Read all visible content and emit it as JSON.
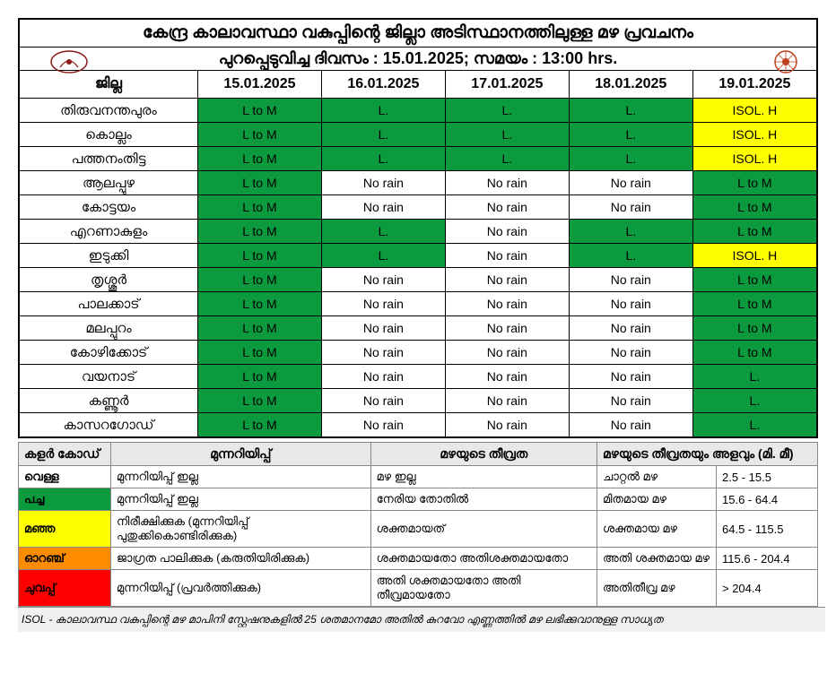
{
  "title": "കേന്ദ്ര കാലാവസ്ഥാ വകുപ്പിന്റെ ജില്ലാ അടിസ്ഥാനത്തിലുള്ള മഴ പ്രവചനം",
  "subtitle": "പുറപ്പെടുവിച്ച ദിവസം : 15.01.2025; സമയം : 13:00 hrs.",
  "col_district": "ജില്ല",
  "dates": [
    "15.01.2025",
    "16.01.2025",
    "17.01.2025",
    "18.01.2025",
    "19.01.2025"
  ],
  "colors": {
    "white": "#ffffff",
    "green": "#0b9b3e",
    "yellow": "#ffff00",
    "orange": "#ff8c00",
    "red": "#ff0000"
  },
  "rows": [
    {
      "district": "തിരുവനന്തപുരം",
      "cells": [
        {
          "t": "L to M",
          "c": "green"
        },
        {
          "t": "L.",
          "c": "green"
        },
        {
          "t": "L.",
          "c": "green"
        },
        {
          "t": "L.",
          "c": "green"
        },
        {
          "t": "ISOL. H",
          "c": "yellow"
        }
      ]
    },
    {
      "district": "കൊല്ലം",
      "cells": [
        {
          "t": "L to M",
          "c": "green"
        },
        {
          "t": "L.",
          "c": "green"
        },
        {
          "t": "L.",
          "c": "green"
        },
        {
          "t": "L.",
          "c": "green"
        },
        {
          "t": "ISOL. H",
          "c": "yellow"
        }
      ]
    },
    {
      "district": "പത്തനംതിട്ട",
      "cells": [
        {
          "t": "L to M",
          "c": "green"
        },
        {
          "t": "L.",
          "c": "green"
        },
        {
          "t": "L.",
          "c": "green"
        },
        {
          "t": "L.",
          "c": "green"
        },
        {
          "t": "ISOL. H",
          "c": "yellow"
        }
      ]
    },
    {
      "district": "ആലപ്പുഴ",
      "cells": [
        {
          "t": "L to M",
          "c": "green"
        },
        {
          "t": "No rain",
          "c": "white"
        },
        {
          "t": "No rain",
          "c": "white"
        },
        {
          "t": "No rain",
          "c": "white"
        },
        {
          "t": "L to M",
          "c": "green"
        }
      ]
    },
    {
      "district": "കോട്ടയം",
      "cells": [
        {
          "t": "L to M",
          "c": "green"
        },
        {
          "t": "No rain",
          "c": "white"
        },
        {
          "t": "No rain",
          "c": "white"
        },
        {
          "t": "No rain",
          "c": "white"
        },
        {
          "t": "L to M",
          "c": "green"
        }
      ]
    },
    {
      "district": "എറണാകുളം",
      "cells": [
        {
          "t": "L to M",
          "c": "green"
        },
        {
          "t": "L.",
          "c": "green"
        },
        {
          "t": "No rain",
          "c": "white"
        },
        {
          "t": "L.",
          "c": "green"
        },
        {
          "t": "L to M",
          "c": "green"
        }
      ]
    },
    {
      "district": "ഇടുക്കി",
      "cells": [
        {
          "t": "L to M",
          "c": "green"
        },
        {
          "t": "L.",
          "c": "green"
        },
        {
          "t": "No rain",
          "c": "white"
        },
        {
          "t": "L.",
          "c": "green"
        },
        {
          "t": "ISOL. H",
          "c": "yellow"
        }
      ]
    },
    {
      "district": "തൃശ്ശൂർ",
      "cells": [
        {
          "t": "L to M",
          "c": "green"
        },
        {
          "t": "No rain",
          "c": "white"
        },
        {
          "t": "No rain",
          "c": "white"
        },
        {
          "t": "No rain",
          "c": "white"
        },
        {
          "t": "L to M",
          "c": "green"
        }
      ]
    },
    {
      "district": "പാലക്കാട്",
      "cells": [
        {
          "t": "L to M",
          "c": "green"
        },
        {
          "t": "No rain",
          "c": "white"
        },
        {
          "t": "No rain",
          "c": "white"
        },
        {
          "t": "No rain",
          "c": "white"
        },
        {
          "t": "L to M",
          "c": "green"
        }
      ]
    },
    {
      "district": "മലപ്പുറം",
      "cells": [
        {
          "t": "L to M",
          "c": "green"
        },
        {
          "t": "No rain",
          "c": "white"
        },
        {
          "t": "No rain",
          "c": "white"
        },
        {
          "t": "No rain",
          "c": "white"
        },
        {
          "t": "L to M",
          "c": "green"
        }
      ]
    },
    {
      "district": "കോഴിക്കോട്",
      "cells": [
        {
          "t": "L to M",
          "c": "green"
        },
        {
          "t": "No rain",
          "c": "white"
        },
        {
          "t": "No rain",
          "c": "white"
        },
        {
          "t": "No rain",
          "c": "white"
        },
        {
          "t": "L to M",
          "c": "green"
        }
      ]
    },
    {
      "district": "വയനാട്",
      "cells": [
        {
          "t": "L to M",
          "c": "green"
        },
        {
          "t": "No rain",
          "c": "white"
        },
        {
          "t": "No rain",
          "c": "white"
        },
        {
          "t": "No rain",
          "c": "white"
        },
        {
          "t": "L.",
          "c": "green"
        }
      ]
    },
    {
      "district": "കണ്ണൂർ",
      "cells": [
        {
          "t": "L to M",
          "c": "green"
        },
        {
          "t": "No rain",
          "c": "white"
        },
        {
          "t": "No rain",
          "c": "white"
        },
        {
          "t": "No rain",
          "c": "white"
        },
        {
          "t": "L.",
          "c": "green"
        }
      ]
    },
    {
      "district": "കാസറഗോഡ്",
      "cells": [
        {
          "t": "L to M",
          "c": "green"
        },
        {
          "t": "No rain",
          "c": "white"
        },
        {
          "t": "No rain",
          "c": "white"
        },
        {
          "t": "No rain",
          "c": "white"
        },
        {
          "t": "L.",
          "c": "green"
        }
      ]
    }
  ],
  "legend": {
    "h_code": "കളർ കോഡ്",
    "h_warning": "മുന്നറിയിപ്പ്",
    "h_intensity": "മഴയുടെ തീവ്രത",
    "h_amount": "മഴയുടെ തീവ്രതയും അളവും (മി. മീ)",
    "rows": [
      {
        "code": "വെള്ള",
        "bg": "white",
        "warn": "മുന്നറിയിപ്പ് ഇല്ല",
        "intensity": "മഴ ഇല്ല",
        "type": "ചാറ്റൽ മഴ",
        "range": "2.5 - 15.5"
      },
      {
        "code": "പച്ച",
        "bg": "green",
        "warn": "മുന്നറിയിപ്പ് ഇല്ല",
        "intensity": "നേരിയ തോതിൽ",
        "type": "മിതമായ മഴ",
        "range": "15.6 - 64.4"
      },
      {
        "code": "മഞ്ഞ",
        "bg": "yellow",
        "warn": "നിരീക്ഷിക്കുക (മുന്നറിയിപ്പ് പുതുക്കികൊണ്ടിരിക്കുക)",
        "intensity": "ശക്തമായത്",
        "type": "ശക്തമായ മഴ",
        "range": "64.5 - 115.5"
      },
      {
        "code": "ഓറഞ്ച്",
        "bg": "orange",
        "warn": "ജാഗ്രത പാലിക്കുക (കരുതിയിരിക്കുക)",
        "intensity": "ശക്തമായതോ അതിശക്തമായതോ",
        "type": "അതി ശക്തമായ മഴ",
        "range": "115.6 - 204.4"
      },
      {
        "code": "ചുവപ്പ്",
        "bg": "red",
        "warn": "മുന്നറിയിപ്പ് (പ്രവർത്തിക്കുക)",
        "intensity": "അതി ശക്തമായതോ അതി തീവ്രമായതോ",
        "type": "അതിതീവ്ര മഴ",
        "range": "> 204.4"
      }
    ]
  },
  "footnote": "ISOL - കാലാവസ്ഥ വകുപ്പിന്റെ മഴ മാപിനി സ്റ്റേഷനുകളിൽ 25 ശതമാനമോ അതിൽ കുറവോ എണ്ണത്തിൽ മഴ ലഭിക്കുവാനുള്ള സാധ്യത"
}
